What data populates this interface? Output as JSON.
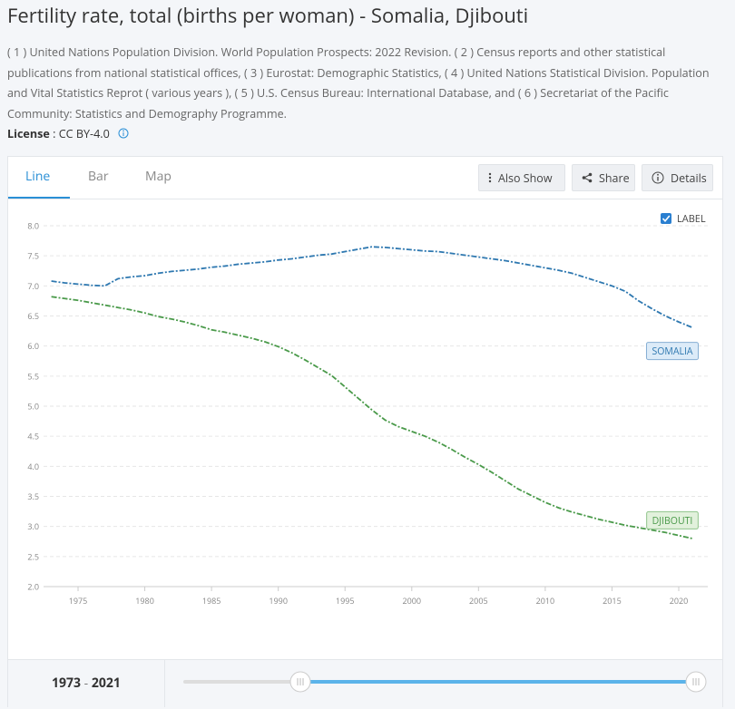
{
  "header": {
    "title": "Fertility rate, total (births per woman) - Somalia, Djibouti",
    "sources": "( 1 ) United Nations Population Division. World Population Prospects: 2022 Revision. ( 2 ) Census reports and other statistical publications from national statistical offices, ( 3 ) Eurostat: Demographic Statistics, ( 4 ) United Nations Statistical Division. Population and Vital Statistics Reprot ( various years ), ( 5 ) U.S. Census Bureau: International Database, and ( 6 ) Secretariat of the Pacific Community: Statistics and Demography Programme.",
    "license_label": "License",
    "license_sep": " : ",
    "license_value": "CC BY-4.0"
  },
  "tabs": [
    "Line",
    "Bar",
    "Map"
  ],
  "buttons": [
    "Also Show",
    "Share",
    "Details"
  ],
  "label_toggle": "LABEL",
  "range": {
    "start": 1973,
    "separator": " - ",
    "end": 2021
  },
  "chart_data": {
    "type": "line",
    "x": [
      1973,
      1974,
      1975,
      1976,
      1977,
      1978,
      1979,
      1980,
      1981,
      1982,
      1983,
      1984,
      1985,
      1986,
      1987,
      1988,
      1989,
      1990,
      1991,
      1992,
      1993,
      1994,
      1995,
      1996,
      1997,
      1998,
      1999,
      2000,
      2001,
      2002,
      2003,
      2004,
      2005,
      2006,
      2007,
      2008,
      2009,
      2010,
      2011,
      2012,
      2013,
      2014,
      2015,
      2016,
      2017,
      2018,
      2019,
      2020,
      2021
    ],
    "series": [
      {
        "name": "SOMALIA",
        "color": "#2e78b0",
        "values": [
          7.08,
          7.05,
          7.03,
          7.01,
          7.0,
          7.12,
          7.15,
          7.17,
          7.21,
          7.24,
          7.26,
          7.28,
          7.31,
          7.33,
          7.36,
          7.38,
          7.4,
          7.43,
          7.45,
          7.48,
          7.51,
          7.53,
          7.57,
          7.61,
          7.65,
          7.64,
          7.62,
          7.6,
          7.58,
          7.57,
          7.54,
          7.51,
          7.48,
          7.45,
          7.42,
          7.38,
          7.34,
          7.3,
          7.26,
          7.21,
          7.14,
          7.07,
          7.0,
          6.91,
          6.75,
          6.62,
          6.5,
          6.4,
          6.31
        ]
      },
      {
        "name": "DJIBOUTI",
        "color": "#4a9a4a",
        "values": [
          6.82,
          6.79,
          6.76,
          6.72,
          6.68,
          6.64,
          6.6,
          6.55,
          6.49,
          6.45,
          6.4,
          6.34,
          6.27,
          6.23,
          6.18,
          6.13,
          6.07,
          5.99,
          5.89,
          5.77,
          5.64,
          5.51,
          5.32,
          5.13,
          4.94,
          4.77,
          4.66,
          4.58,
          4.5,
          4.4,
          4.28,
          4.15,
          4.03,
          3.9,
          3.76,
          3.62,
          3.51,
          3.4,
          3.31,
          3.24,
          3.18,
          3.12,
          3.07,
          3.02,
          2.98,
          2.94,
          2.9,
          2.85,
          2.8
        ]
      }
    ],
    "xlim": [
      1973,
      2021
    ],
    "xticks": [
      1975,
      1980,
      1985,
      1990,
      1995,
      2000,
      2005,
      2010,
      2015,
      2020
    ],
    "ylim": [
      2,
      8
    ],
    "yticks": [
      {
        "value": 2,
        "label": "2.0"
      },
      2.5,
      {
        "value": 3,
        "label": "3.0"
      },
      3.5,
      {
        "value": 4,
        "label": "4.0"
      },
      4.5,
      {
        "value": 5,
        "label": "5.0"
      },
      5.5,
      {
        "value": 6,
        "label": "6.0"
      },
      6.5,
      {
        "value": 7,
        "label": "7.0"
      },
      7.5,
      {
        "value": 8,
        "label": "8.0"
      }
    ],
    "grid": true
  }
}
